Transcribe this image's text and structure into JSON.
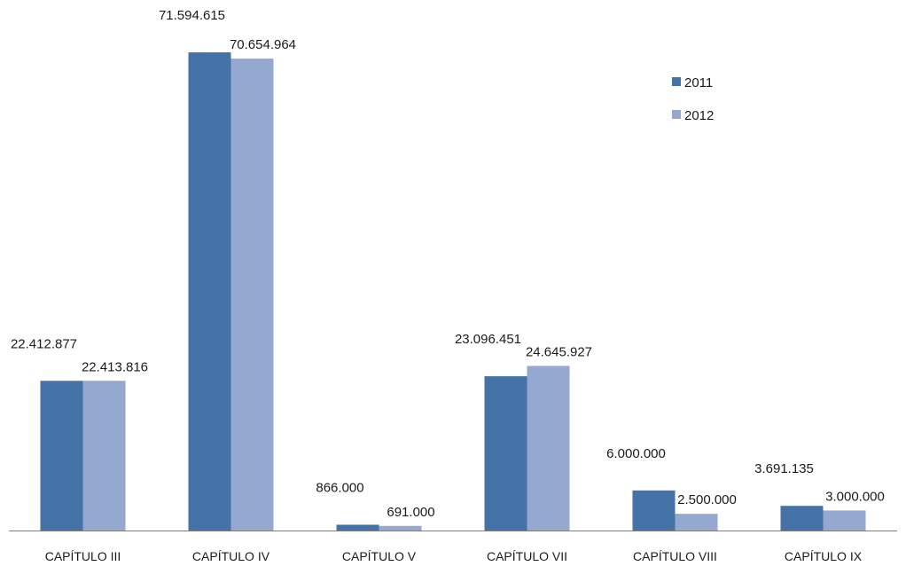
{
  "chart_data": {
    "type": "bar",
    "categories": [
      "CAPÍTULO III",
      "CAPÍTULO IV",
      "CAPÍTULO V",
      "CAPÍTULO VII",
      "CAPÍTULO VIII",
      "CAPÍTULO IX"
    ],
    "series": [
      {
        "name": "2011",
        "values": [
          22412877,
          71594615,
          866000,
          23096451,
          6000000,
          3691135
        ],
        "labels": [
          "22.412.877",
          "71.594.615",
          "866.000",
          "23.096.451",
          "6.000.000",
          "3.691.135"
        ],
        "color": "#4572A7"
      },
      {
        "name": "2012",
        "values": [
          22413816,
          70654964,
          691000,
          24645927,
          2500000,
          3000000
        ],
        "labels": [
          "22.413.816",
          "70.654.964",
          "691.000",
          "24.645.927",
          "2.500.000",
          "3.000.000"
        ],
        "color": "#94A8D0"
      }
    ],
    "ylim": [
      0,
      71594615
    ],
    "grid": false,
    "legend_position": "top-right"
  }
}
